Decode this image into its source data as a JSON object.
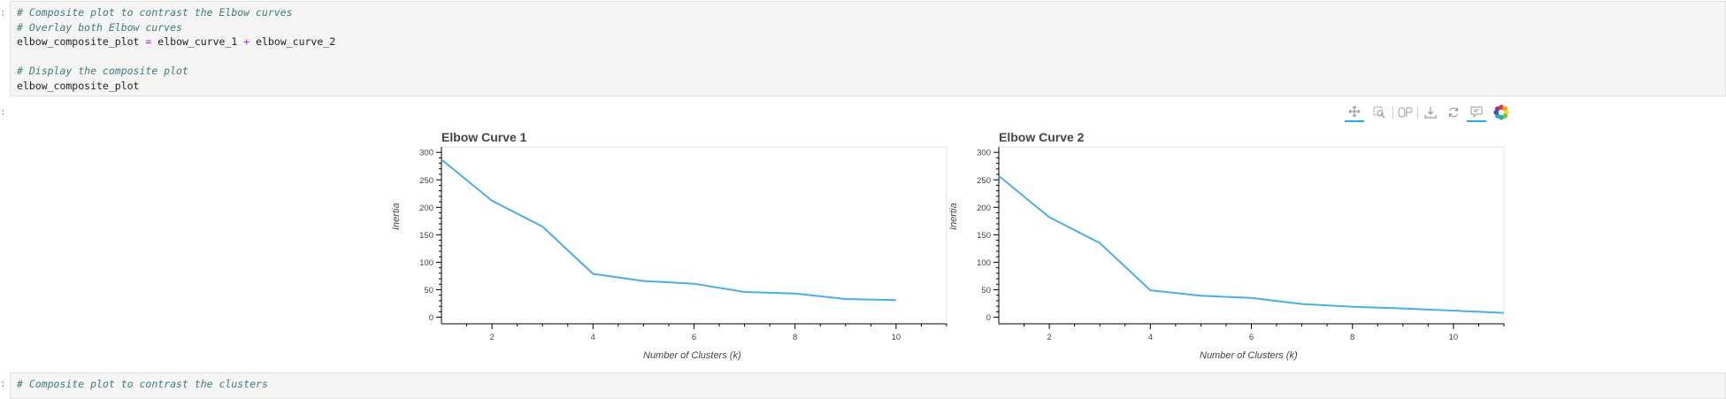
{
  "cell1": {
    "prompt": ":",
    "lines": [
      {
        "type": "comment",
        "text": "# Composite plot to contrast the Elbow curves"
      },
      {
        "type": "comment",
        "text": "# Overlay both Elbow curves"
      },
      {
        "type": "code",
        "var": "elbow_composite_plot",
        "eq": "=",
        "a": "elbow_curve_1",
        "plus": "+",
        "b": "elbow_curve_2"
      },
      {
        "type": "blank",
        "text": ""
      },
      {
        "type": "comment",
        "text": "# Display the composite plot"
      },
      {
        "type": "code-plain",
        "text": "elbow_composite_plot"
      }
    ]
  },
  "output_prompt": ":",
  "cell2": {
    "prompt": ":",
    "line": "# Composite plot to contrast the clusters"
  },
  "toolbar": {
    "items": [
      "pan-icon",
      "box-zoom-icon",
      "wheel-zoom-icon",
      "save-icon",
      "reset-icon",
      "hover-icon",
      "bokeh-logo-icon"
    ]
  },
  "colors": {
    "line": "#4aaee3",
    "comment": "#3d7b7b",
    "operator": "#aa22ff"
  },
  "chart_data": [
    {
      "type": "line",
      "title": "Elbow Curve 1",
      "xlabel": "Number of Clusters (k)",
      "ylabel": "Inertia",
      "x": [
        1,
        2,
        3,
        4,
        5,
        6,
        7,
        8,
        9,
        10
      ],
      "values": [
        287,
        212,
        165,
        79,
        66,
        61,
        46,
        43,
        33,
        31
      ],
      "xlim": [
        1,
        11
      ],
      "ylim": [
        -12,
        310
      ],
      "xticks": [
        2,
        4,
        6,
        8,
        10
      ],
      "yticks": [
        0,
        50,
        100,
        150,
        200,
        250,
        300
      ],
      "grid": false
    },
    {
      "type": "line",
      "title": "Elbow Curve 2",
      "xlabel": "Number of Clusters (k)",
      "ylabel": "Inertia",
      "x": [
        1,
        2,
        3,
        4,
        5,
        6,
        7,
        8,
        9,
        10,
        11
      ],
      "values": [
        257,
        182,
        135,
        49,
        39,
        35,
        24,
        19,
        16,
        12,
        8
      ],
      "xlim": [
        1,
        11
      ],
      "ylim": [
        -12,
        310
      ],
      "xticks": [
        2,
        4,
        6,
        8,
        10
      ],
      "yticks": [
        0,
        50,
        100,
        150,
        200,
        250,
        300
      ],
      "grid": false
    }
  ]
}
